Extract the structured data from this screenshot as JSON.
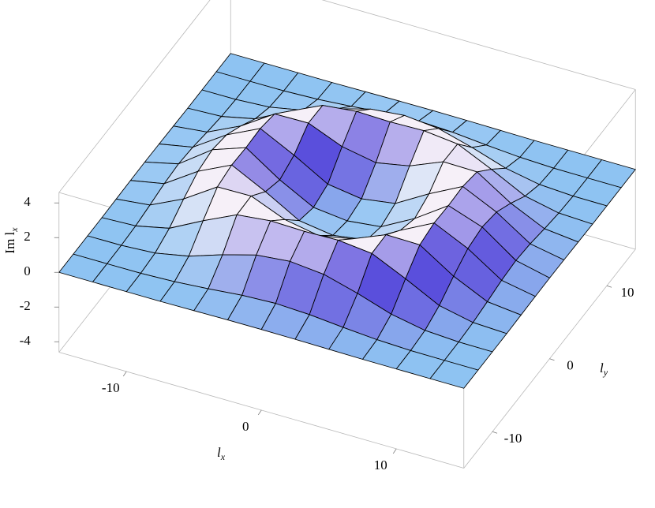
{
  "chart_data": {
    "type": "surface",
    "xlabel": {
      "text": "l",
      "sub": "x"
    },
    "ylabel": {
      "text": "l",
      "sub": "y"
    },
    "zlabel": {
      "text": "Im l",
      "sub": "x"
    },
    "x": [
      -15,
      -12.5,
      -10,
      -7.5,
      -5,
      -2.5,
      0,
      2.5,
      5,
      7.5,
      10,
      12.5,
      15
    ],
    "y": [
      -15,
      -12.5,
      -10,
      -7.5,
      -5,
      -2.5,
      0,
      2.5,
      5,
      7.5,
      10,
      12.5,
      15
    ],
    "z": [
      [
        0,
        0,
        0,
        0,
        0.02,
        0.04,
        0.05,
        0.04,
        0.02,
        0,
        0,
        0,
        0
      ],
      [
        0,
        0,
        0.01,
        0.08,
        0.23,
        0.41,
        0.5,
        0.41,
        0.23,
        0.08,
        0.01,
        0,
        0
      ],
      [
        0,
        0.01,
        0.12,
        0.5,
        1.14,
        1.68,
        1.87,
        1.68,
        1.14,
        0.5,
        0.12,
        0.01,
        0
      ],
      [
        0,
        0.08,
        0.5,
        1.49,
        2.39,
        2.6,
        2.55,
        2.6,
        2.39,
        1.49,
        0.5,
        0.08,
        0
      ],
      [
        0.02,
        0.23,
        1.14,
        2.39,
        2.42,
        1.62,
        1.25,
        1.62,
        2.42,
        2.39,
        1.14,
        0.23,
        0.02
      ],
      [
        0.04,
        0.41,
        1.68,
        2.6,
        1.62,
        0.51,
        0.22,
        0.51,
        1.62,
        2.6,
        1.68,
        0.41,
        0.04
      ],
      [
        0.05,
        0.5,
        1.87,
        2.55,
        1.25,
        0.22,
        0,
        0.22,
        1.25,
        2.55,
        1.87,
        0.5,
        0.05
      ],
      [
        0.04,
        0.41,
        1.68,
        2.6,
        1.62,
        0.51,
        0.22,
        0.51,
        1.62,
        2.6,
        1.68,
        0.41,
        0.04
      ],
      [
        0.02,
        0.23,
        1.14,
        2.39,
        2.42,
        1.62,
        1.25,
        1.62,
        2.42,
        2.39,
        1.14,
        0.23,
        0.02
      ],
      [
        0,
        0.08,
        0.5,
        1.49,
        2.39,
        2.6,
        2.55,
        2.6,
        2.39,
        1.49,
        0.5,
        0.08,
        0
      ],
      [
        0,
        0.01,
        0.12,
        0.5,
        1.14,
        1.68,
        1.87,
        1.68,
        1.14,
        0.5,
        0.12,
        0.01,
        0
      ],
      [
        0,
        0,
        0.01,
        0.08,
        0.23,
        0.41,
        0.5,
        0.41,
        0.23,
        0.08,
        0.01,
        0,
        0
      ],
      [
        0,
        0,
        0,
        0,
        0.02,
        0.04,
        0.05,
        0.04,
        0.02,
        0,
        0,
        0,
        0
      ]
    ],
    "xlim": [
      -15,
      15
    ],
    "ylim": [
      -15,
      15
    ],
    "zlim": [
      -4.6,
      4.6
    ],
    "xticks": [
      -10,
      0,
      10
    ],
    "yticks": [
      -10,
      0,
      10
    ],
    "zticks": [
      -4,
      -2,
      0,
      2,
      4
    ],
    "color": "#8ec3f2",
    "peak_color": "#f6f0f8",
    "shade_color": "#5a4fdc",
    "mesh": true
  }
}
